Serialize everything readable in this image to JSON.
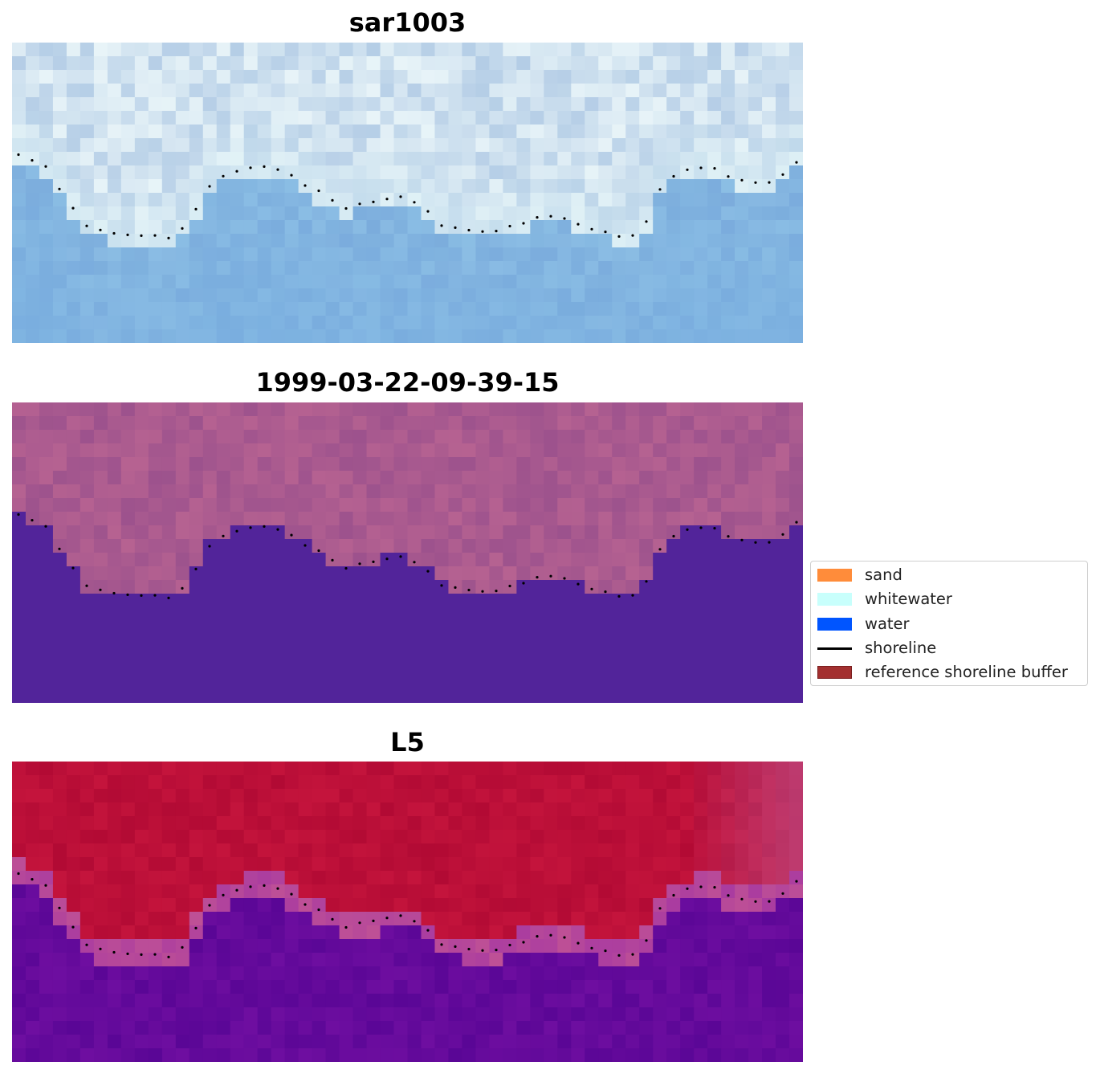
{
  "panels": [
    {
      "title": "sar1003",
      "palette": "sar"
    },
    {
      "title": "1999-03-22-09-39-15",
      "palette": "classified"
    },
    {
      "title": "L5",
      "palette": "index"
    }
  ],
  "legend": {
    "items": [
      {
        "label": "sand",
        "color": "#ff8c3a",
        "kind": "patch"
      },
      {
        "label": "whitewater",
        "color": "#c8fffc",
        "kind": "patch"
      },
      {
        "label": "water",
        "color": "#0055ff",
        "kind": "patch"
      },
      {
        "label": "shoreline",
        "color": "#000000",
        "kind": "line"
      },
      {
        "label": "reference shoreline buffer",
        "color": "#a33030",
        "kind": "patch"
      }
    ]
  },
  "colors": {
    "classified_land": "#b2628f",
    "classified_water": "#52249a",
    "index_land": "#c2103a",
    "index_water": "#60089a",
    "sar_bright": "#f2fafb",
    "sar_water": "#7aaedb"
  }
}
